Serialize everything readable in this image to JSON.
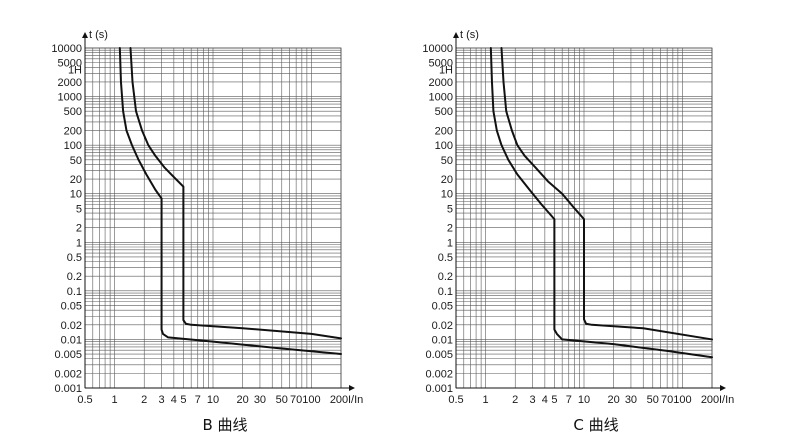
{
  "chart_data": [
    {
      "type": "line",
      "title": "B 曲线",
      "xlabel": "I/In",
      "ylabel": "t (s)",
      "x_scale": "log",
      "y_scale": "log",
      "xlim": [
        0.5,
        200
      ],
      "ylim": [
        0.001,
        10000
      ],
      "grid": true,
      "x_ticks": [
        {
          "value": 0.5,
          "label": "0.5"
        },
        {
          "value": 1,
          "label": "1"
        },
        {
          "value": 2,
          "label": "2"
        },
        {
          "value": 3,
          "label": "3"
        },
        {
          "value": 4,
          "label": "4"
        },
        {
          "value": 5,
          "label": "5"
        },
        {
          "value": 7,
          "label": "7"
        },
        {
          "value": 10,
          "label": "10"
        },
        {
          "value": 20,
          "label": "20"
        },
        {
          "value": 30,
          "label": "30"
        },
        {
          "value": 50,
          "label": "50"
        },
        {
          "value": 70,
          "label": "70"
        },
        {
          "value": 100,
          "label": "100"
        },
        {
          "value": 200,
          "label": "200"
        }
      ],
      "y_ticks": [
        {
          "value": 10000,
          "label": "10000"
        },
        {
          "value": 5000,
          "label": "5000"
        },
        {
          "value": 3600,
          "label": "1H"
        },
        {
          "value": 2000,
          "label": "2000"
        },
        {
          "value": 1000,
          "label": "1000"
        },
        {
          "value": 500,
          "label": "500"
        },
        {
          "value": 200,
          "label": "200"
        },
        {
          "value": 100,
          "label": "100"
        },
        {
          "value": 50,
          "label": "50"
        },
        {
          "value": 20,
          "label": "20"
        },
        {
          "value": 10,
          "label": "10"
        },
        {
          "value": 5,
          "label": "5"
        },
        {
          "value": 2,
          "label": "2"
        },
        {
          "value": 1,
          "label": "1"
        },
        {
          "value": 0.5,
          "label": "0.5"
        },
        {
          "value": 0.2,
          "label": "0.2"
        },
        {
          "value": 0.1,
          "label": "0.1"
        },
        {
          "value": 0.05,
          "label": "0.05"
        },
        {
          "value": 0.02,
          "label": "0.02"
        },
        {
          "value": 0.01,
          "label": "0.01"
        },
        {
          "value": 0.005,
          "label": "0.005"
        },
        {
          "value": 0.002,
          "label": "0.002"
        },
        {
          "value": 0.001,
          "label": "0.001"
        }
      ],
      "series": [
        {
          "points": [
            [
              1.13,
              10000
            ],
            [
              1.16,
              2000
            ],
            [
              1.22,
              500
            ],
            [
              1.32,
              200
            ],
            [
              1.5,
              100
            ],
            [
              1.75,
              50
            ],
            [
              2.1,
              25
            ],
            [
              2.6,
              12
            ],
            [
              3,
              8
            ],
            [
              3,
              0.016
            ],
            [
              3.1,
              0.013
            ],
            [
              3.5,
              0.011
            ],
            [
              10,
              0.009
            ],
            [
              50,
              0.0065
            ],
            [
              200,
              0.005
            ]
          ]
        },
        {
          "points": [
            [
              1.45,
              10000
            ],
            [
              1.52,
              2000
            ],
            [
              1.65,
              500
            ],
            [
              1.9,
              200
            ],
            [
              2.2,
              100
            ],
            [
              2.6,
              60
            ],
            [
              3.2,
              35
            ],
            [
              4,
              22
            ],
            [
              5,
              14
            ],
            [
              5,
              0.025
            ],
            [
              5.3,
              0.021
            ],
            [
              6,
              0.02
            ],
            [
              20,
              0.017
            ],
            [
              100,
              0.013
            ],
            [
              200,
              0.0105
            ]
          ]
        }
      ]
    },
    {
      "type": "line",
      "title": "C 曲线",
      "xlabel": "I/In",
      "ylabel": "t (s)",
      "x_scale": "log",
      "y_scale": "log",
      "xlim": [
        0.5,
        200
      ],
      "ylim": [
        0.001,
        10000
      ],
      "grid": true,
      "x_ticks": [
        {
          "value": 0.5,
          "label": "0.5"
        },
        {
          "value": 1,
          "label": "1"
        },
        {
          "value": 2,
          "label": "2"
        },
        {
          "value": 3,
          "label": "3"
        },
        {
          "value": 4,
          "label": "4"
        },
        {
          "value": 5,
          "label": "5"
        },
        {
          "value": 7,
          "label": "7"
        },
        {
          "value": 10,
          "label": "10"
        },
        {
          "value": 20,
          "label": "20"
        },
        {
          "value": 30,
          "label": "30"
        },
        {
          "value": 50,
          "label": "50"
        },
        {
          "value": 70,
          "label": "70"
        },
        {
          "value": 100,
          "label": "100"
        },
        {
          "value": 200,
          "label": "200"
        }
      ],
      "y_ticks": [
        {
          "value": 10000,
          "label": "10000"
        },
        {
          "value": 5000,
          "label": "5000"
        },
        {
          "value": 3600,
          "label": "1H"
        },
        {
          "value": 2000,
          "label": "2000"
        },
        {
          "value": 1000,
          "label": "1000"
        },
        {
          "value": 500,
          "label": "500"
        },
        {
          "value": 200,
          "label": "200"
        },
        {
          "value": 100,
          "label": "100"
        },
        {
          "value": 50,
          "label": "50"
        },
        {
          "value": 20,
          "label": "20"
        },
        {
          "value": 10,
          "label": "10"
        },
        {
          "value": 5,
          "label": "5"
        },
        {
          "value": 2,
          "label": "2"
        },
        {
          "value": 1,
          "label": "1"
        },
        {
          "value": 0.5,
          "label": "0.5"
        },
        {
          "value": 0.2,
          "label": "0.2"
        },
        {
          "value": 0.1,
          "label": "0.1"
        },
        {
          "value": 0.05,
          "label": "0.05"
        },
        {
          "value": 0.02,
          "label": "0.02"
        },
        {
          "value": 0.01,
          "label": "0.01"
        },
        {
          "value": 0.005,
          "label": "0.005"
        },
        {
          "value": 0.002,
          "label": "0.002"
        },
        {
          "value": 0.001,
          "label": "0.001"
        }
      ],
      "series": [
        {
          "points": [
            [
              1.13,
              10000
            ],
            [
              1.16,
              2000
            ],
            [
              1.2,
              500
            ],
            [
              1.3,
              200
            ],
            [
              1.45,
              100
            ],
            [
              1.7,
              50
            ],
            [
              2.1,
              25
            ],
            [
              2.8,
              12
            ],
            [
              3.7,
              6
            ],
            [
              5,
              3
            ],
            [
              5,
              0.016
            ],
            [
              5.3,
              0.013
            ],
            [
              6,
              0.01
            ],
            [
              20,
              0.008
            ],
            [
              70,
              0.0058
            ],
            [
              200,
              0.0043
            ]
          ]
        },
        {
          "points": [
            [
              1.45,
              10000
            ],
            [
              1.52,
              2000
            ],
            [
              1.62,
              500
            ],
            [
              1.85,
              200
            ],
            [
              2.1,
              100
            ],
            [
              2.5,
              60
            ],
            [
              3.2,
              35
            ],
            [
              4.3,
              18
            ],
            [
              6,
              10
            ],
            [
              8,
              5
            ],
            [
              10,
              3
            ],
            [
              10,
              0.026
            ],
            [
              10.5,
              0.021
            ],
            [
              12,
              0.02
            ],
            [
              40,
              0.017
            ],
            [
              200,
              0.01
            ]
          ]
        }
      ]
    }
  ]
}
